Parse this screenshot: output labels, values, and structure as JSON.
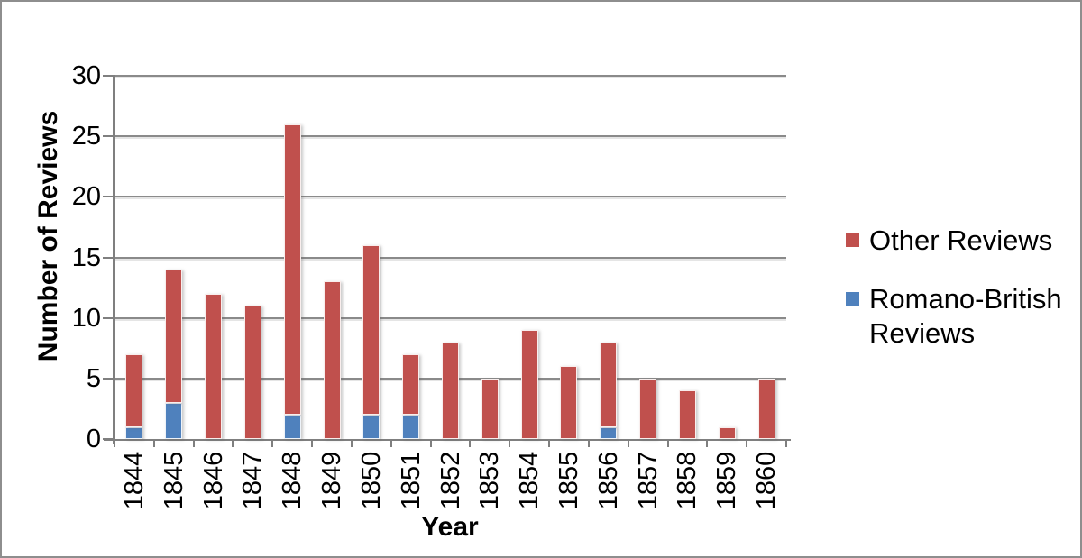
{
  "window": {
    "background": "#ffffff",
    "frame_border_color": "#8e8e8e",
    "gridline_color": "#8a8a8a",
    "axis_color": "#7f7f7f"
  },
  "chart_data": {
    "type": "bar",
    "stacked": true,
    "title": "",
    "xlabel": "Year",
    "ylabel": "Number of Reviews",
    "categories": [
      "1844",
      "1845",
      "1846",
      "1847",
      "1848",
      "1849",
      "1850",
      "1851",
      "1852",
      "1853",
      "1854",
      "1855",
      "1856",
      "1857",
      "1858",
      "1859",
      "1860"
    ],
    "series": [
      {
        "name": "Romano-British Reviews",
        "color": "#4F81BD",
        "values": [
          1,
          3,
          0,
          0,
          2,
          0,
          2,
          2,
          0,
          0,
          0,
          0,
          1,
          0,
          0,
          0,
          0
        ]
      },
      {
        "name": "Other Reviews",
        "color": "#C0504D",
        "values": [
          6,
          11,
          12,
          11,
          24,
          13,
          14,
          5,
          8,
          5,
          9,
          6,
          7,
          5,
          4,
          1,
          5
        ]
      }
    ],
    "stack_order_bottom_to_top": [
      "Romano-British Reviews",
      "Other Reviews"
    ],
    "stacked_totals": [
      7,
      14,
      12,
      11,
      26,
      13,
      16,
      7,
      8,
      5,
      9,
      6,
      8,
      5,
      4,
      1,
      5
    ],
    "ylim": [
      0,
      30
    ],
    "yticks": [
      0,
      5,
      10,
      15,
      20,
      25,
      30
    ],
    "grid": true,
    "legend": {
      "position": "right",
      "entries": [
        {
          "label": "Other Reviews",
          "color": "#C0504D"
        },
        {
          "label": "Romano-British Reviews",
          "color": "#4F81BD"
        }
      ]
    }
  }
}
